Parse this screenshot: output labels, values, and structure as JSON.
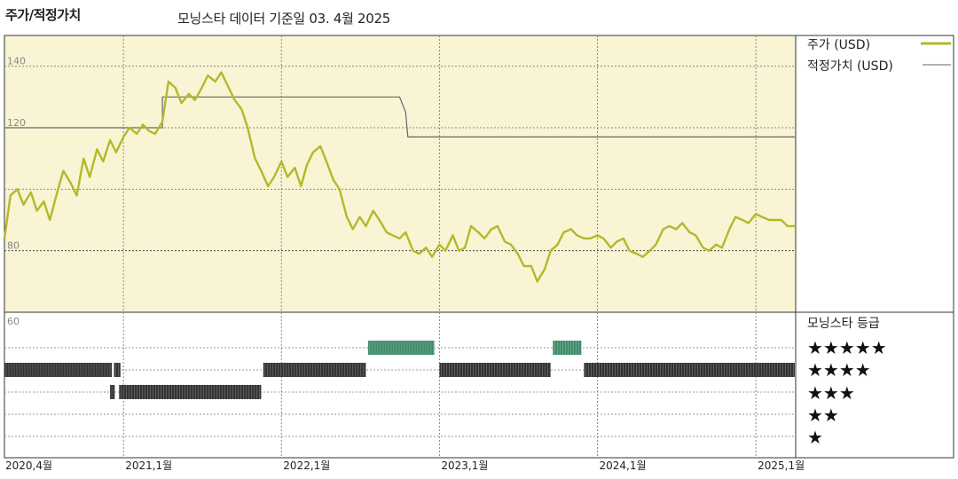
{
  "header": {
    "title": "주가/적정가치",
    "subtitle": "모닝스타 데이터 기준일 03. 4월 2025"
  },
  "chart_data": {
    "type": "line",
    "title": "주가/적정가치",
    "x_tick_labels": [
      "2020,4월",
      "2021,1월",
      "2022,1월",
      "2023,1월",
      "2024,1월",
      "2025,1월"
    ],
    "x_tick_dates": [
      "2020-04-01",
      "2021-01-01",
      "2022-01-01",
      "2023-01-01",
      "2024-01-01",
      "2025-01-01"
    ],
    "x_range": [
      "2020-04-01",
      "2025-04-03"
    ],
    "y_range": [
      60,
      150
    ],
    "y_ticks": [
      60,
      80,
      100,
      120,
      140
    ],
    "y_tick_labels": [
      "60",
      "80",
      "",
      "120",
      "140"
    ],
    "grid": true,
    "legend_position": "right",
    "colors": {
      "price": "#b5b82a",
      "fair_value": "#666666",
      "upper_panel_bg": "#f8f4d4",
      "rating5": "#3f8c6a",
      "rating_other": "#333333"
    },
    "series": [
      {
        "name": "주가 (USD)",
        "points": [
          [
            "2020-04-01",
            84
          ],
          [
            "2020-04-15",
            98
          ],
          [
            "2020-05-01",
            100
          ],
          [
            "2020-05-15",
            95
          ],
          [
            "2020-06-01",
            99
          ],
          [
            "2020-06-15",
            93
          ],
          [
            "2020-07-01",
            96
          ],
          [
            "2020-07-15",
            90
          ],
          [
            "2020-08-01",
            99
          ],
          [
            "2020-08-15",
            106
          ],
          [
            "2020-09-01",
            102
          ],
          [
            "2020-09-15",
            98
          ],
          [
            "2020-10-01",
            110
          ],
          [
            "2020-10-15",
            104
          ],
          [
            "2020-11-01",
            113
          ],
          [
            "2020-11-15",
            109
          ],
          [
            "2020-12-01",
            116
          ],
          [
            "2020-12-15",
            112
          ],
          [
            "2021-01-01",
            117
          ],
          [
            "2021-01-15",
            120
          ],
          [
            "2021-02-01",
            118
          ],
          [
            "2021-02-15",
            121
          ],
          [
            "2021-03-01",
            119
          ],
          [
            "2021-03-15",
            118
          ],
          [
            "2021-04-01",
            122
          ],
          [
            "2021-04-15",
            135
          ],
          [
            "2021-05-01",
            133
          ],
          [
            "2021-05-15",
            128
          ],
          [
            "2021-06-01",
            131
          ],
          [
            "2021-06-15",
            129
          ],
          [
            "2021-07-01",
            133
          ],
          [
            "2021-07-15",
            137
          ],
          [
            "2021-08-01",
            135
          ],
          [
            "2021-08-15",
            138
          ],
          [
            "2021-09-01",
            133
          ],
          [
            "2021-09-15",
            129
          ],
          [
            "2021-10-01",
            126
          ],
          [
            "2021-10-15",
            120
          ],
          [
            "2021-11-01",
            110
          ],
          [
            "2021-11-15",
            106
          ],
          [
            "2021-12-01",
            101
          ],
          [
            "2021-12-15",
            104
          ],
          [
            "2022-01-01",
            109
          ],
          [
            "2022-01-15",
            104
          ],
          [
            "2022-02-01",
            107
          ],
          [
            "2022-02-15",
            101
          ],
          [
            "2022-03-01",
            108
          ],
          [
            "2022-03-15",
            112
          ],
          [
            "2022-04-01",
            114
          ],
          [
            "2022-04-15",
            109
          ],
          [
            "2022-05-01",
            103
          ],
          [
            "2022-05-15",
            100
          ],
          [
            "2022-06-01",
            91
          ],
          [
            "2022-06-15",
            87
          ],
          [
            "2022-07-01",
            91
          ],
          [
            "2022-07-15",
            88
          ],
          [
            "2022-08-01",
            93
          ],
          [
            "2022-08-15",
            90
          ],
          [
            "2022-09-01",
            86
          ],
          [
            "2022-09-15",
            85
          ],
          [
            "2022-10-01",
            84
          ],
          [
            "2022-10-15",
            86
          ],
          [
            "2022-11-01",
            80
          ],
          [
            "2022-11-15",
            79
          ],
          [
            "2022-12-01",
            81
          ],
          [
            "2022-12-15",
            78
          ],
          [
            "2023-01-01",
            82
          ],
          [
            "2023-01-15",
            80
          ],
          [
            "2023-02-01",
            85
          ],
          [
            "2023-02-15",
            80
          ],
          [
            "2023-03-01",
            81
          ],
          [
            "2023-03-15",
            88
          ],
          [
            "2023-04-01",
            86
          ],
          [
            "2023-04-15",
            84
          ],
          [
            "2023-05-01",
            87
          ],
          [
            "2023-05-15",
            88
          ],
          [
            "2023-06-01",
            83
          ],
          [
            "2023-06-15",
            82
          ],
          [
            "2023-07-01",
            79
          ],
          [
            "2023-07-15",
            75
          ],
          [
            "2023-08-01",
            75
          ],
          [
            "2023-08-15",
            70
          ],
          [
            "2023-09-01",
            74
          ],
          [
            "2023-09-15",
            80
          ],
          [
            "2023-10-01",
            82
          ],
          [
            "2023-10-15",
            86
          ],
          [
            "2023-11-01",
            87
          ],
          [
            "2023-11-15",
            85
          ],
          [
            "2023-12-01",
            84
          ],
          [
            "2023-12-15",
            84
          ],
          [
            "2024-01-01",
            85
          ],
          [
            "2024-01-15",
            84
          ],
          [
            "2024-02-01",
            81
          ],
          [
            "2024-02-15",
            83
          ],
          [
            "2024-03-01",
            84
          ],
          [
            "2024-03-15",
            80
          ],
          [
            "2024-04-01",
            79
          ],
          [
            "2024-04-15",
            78
          ],
          [
            "2024-05-01",
            80
          ],
          [
            "2024-05-15",
            82
          ],
          [
            "2024-06-01",
            87
          ],
          [
            "2024-06-15",
            88
          ],
          [
            "2024-07-01",
            87
          ],
          [
            "2024-07-15",
            89
          ],
          [
            "2024-08-01",
            86
          ],
          [
            "2024-08-15",
            85
          ],
          [
            "2024-09-01",
            81
          ],
          [
            "2024-09-15",
            80
          ],
          [
            "2024-10-01",
            82
          ],
          [
            "2024-10-15",
            81
          ],
          [
            "2024-11-01",
            87
          ],
          [
            "2024-11-15",
            91
          ],
          [
            "2024-12-01",
            90
          ],
          [
            "2024-12-15",
            89
          ],
          [
            "2025-01-01",
            92
          ],
          [
            "2025-01-15",
            91
          ],
          [
            "2025-02-01",
            90
          ],
          [
            "2025-02-15",
            90
          ],
          [
            "2025-03-01",
            90
          ],
          [
            "2025-03-15",
            88
          ],
          [
            "2025-04-01",
            88
          ]
        ]
      },
      {
        "name": "적정가치 (USD)",
        "points": [
          [
            "2020-04-01",
            120
          ],
          [
            "2021-04-01",
            120
          ],
          [
            "2021-04-01",
            130
          ],
          [
            "2022-10-01",
            130
          ],
          [
            "2022-10-15",
            125
          ],
          [
            "2022-10-20",
            117
          ],
          [
            "2025-04-01",
            117
          ]
        ]
      }
    ],
    "rating_panel": {
      "title": "모닝스타 등급",
      "levels": [
        "★★★★★",
        "★★★★",
        "★★★",
        "★★",
        "★"
      ],
      "segments": [
        {
          "stars": 4,
          "start": "2020-04-01",
          "end": "2020-12-05"
        },
        {
          "stars": 4,
          "start": "2020-12-10",
          "end": "2020-12-25"
        },
        {
          "stars": 3,
          "start": "2020-12-01",
          "end": "2020-12-12"
        },
        {
          "stars": 3,
          "start": "2020-12-22",
          "end": "2021-11-15"
        },
        {
          "stars": 4,
          "start": "2021-11-20",
          "end": "2022-07-15"
        },
        {
          "stars": 5,
          "start": "2022-07-20",
          "end": "2022-12-20"
        },
        {
          "stars": 4,
          "start": "2023-01-01",
          "end": "2023-09-15"
        },
        {
          "stars": 5,
          "start": "2023-09-20",
          "end": "2023-11-25"
        },
        {
          "stars": 4,
          "start": "2023-12-01",
          "end": "2025-04-01"
        }
      ]
    }
  }
}
